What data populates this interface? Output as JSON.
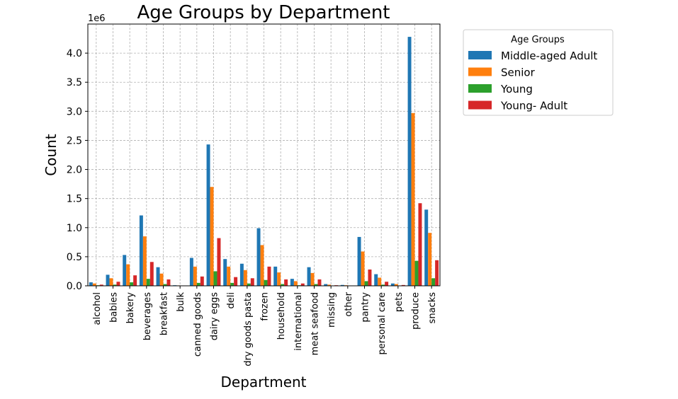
{
  "chart_data": {
    "type": "bar",
    "title": "Age Groups by Department",
    "xlabel": "Department",
    "ylabel": "Count",
    "y_offset_label": "1e6",
    "y_scale": 1000000,
    "ylim": [
      0,
      4.5
    ],
    "yticks": [
      "0.0",
      "0.5",
      "1.0",
      "1.5",
      "2.0",
      "2.5",
      "3.0",
      "3.5",
      "4.0"
    ],
    "grid": true,
    "legend": {
      "title": "Age Groups",
      "placement": "outside-top-right"
    },
    "categories": [
      "alcohol",
      "babies",
      "bakery",
      "beverages",
      "breakfast",
      "bulk",
      "canned goods",
      "dairy eggs",
      "deli",
      "dry goods pasta",
      "frozen",
      "household",
      "international",
      "meat seafood",
      "missing",
      "other",
      "pantry",
      "personal care",
      "pets",
      "produce",
      "snacks"
    ],
    "series": [
      {
        "name": "Middle-aged Adult",
        "color": "#1f77b4",
        "values": [
          0.06,
          0.19,
          0.53,
          1.21,
          0.32,
          0.01,
          0.48,
          2.43,
          0.46,
          0.38,
          0.99,
          0.33,
          0.12,
          0.32,
          0.03,
          0.015,
          0.84,
          0.2,
          0.04,
          4.28,
          1.31
        ]
      },
      {
        "name": "Senior",
        "color": "#ff7f0e",
        "values": [
          0.04,
          0.13,
          0.37,
          0.85,
          0.21,
          0.007,
          0.33,
          1.7,
          0.33,
          0.27,
          0.7,
          0.23,
          0.08,
          0.22,
          0.02,
          0.01,
          0.59,
          0.14,
          0.03,
          2.97,
          0.91
        ]
      },
      {
        "name": "Young",
        "color": "#2ca02c",
        "values": [
          0.01,
          0.02,
          0.06,
          0.12,
          0.03,
          0.001,
          0.05,
          0.25,
          0.05,
          0.04,
          0.1,
          0.03,
          0.01,
          0.03,
          0.003,
          0.001,
          0.08,
          0.02,
          0.004,
          0.43,
          0.13
        ]
      },
      {
        "name": "Young- Adult",
        "color": "#d62728",
        "values": [
          0.02,
          0.07,
          0.18,
          0.41,
          0.11,
          0.004,
          0.16,
          0.82,
          0.15,
          0.13,
          0.33,
          0.11,
          0.04,
          0.11,
          0.01,
          0.005,
          0.28,
          0.07,
          0.014,
          1.42,
          0.44
        ]
      }
    ]
  }
}
